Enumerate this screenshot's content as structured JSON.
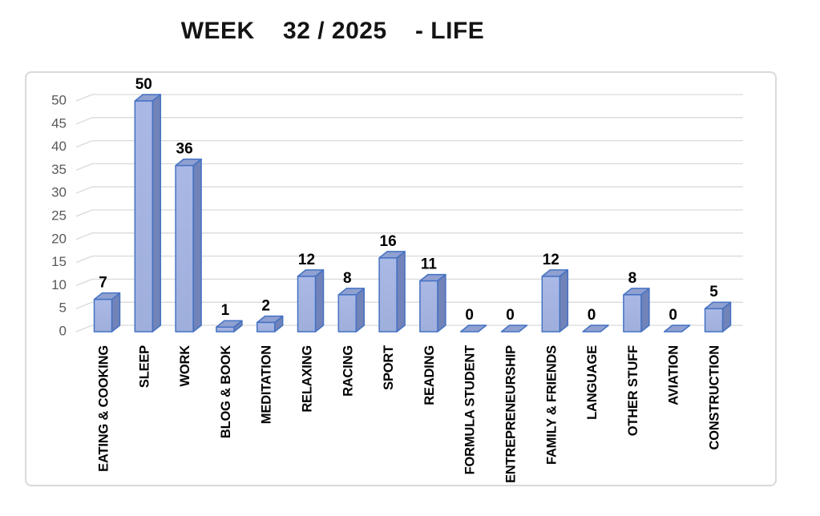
{
  "chart_data": {
    "type": "bar",
    "style": "3d-column",
    "title": "WEEK    32 / 2025    - LIFE",
    "categories": [
      "EATING & COOKING",
      "SLEEP",
      "WORK",
      "BLOG & BOOK",
      "MEDITATION",
      "RELAXING",
      "RACING",
      "SPORT",
      "READING",
      "FORMULA STUDENT",
      "ENTREPRENEURSHIP",
      "FAMILY & FRIENDS",
      "LANGUAGE",
      "OTHER STUFF",
      "AVIATION",
      "CONSTRUCTION"
    ],
    "values": [
      7,
      50,
      36,
      1,
      2,
      12,
      8,
      16,
      11,
      0,
      0,
      12,
      0,
      8,
      0,
      5
    ],
    "data_labels_shown": true,
    "xlabel": "",
    "ylabel": "",
    "ylim": [
      0,
      50
    ],
    "ytick_step": 5,
    "grid": true,
    "legend": "none",
    "colors": {
      "bar_front": "#9fafdc",
      "bar_front_light": "#aab8e5",
      "bar_side": "#7183b8",
      "bar_top": "#8fa0d1",
      "bar_stroke": "#4472c4",
      "gridline": "#d9d9d9",
      "plot_border": "#d9d9d9",
      "ytick_text": "#595959",
      "xtick_text": "#000000",
      "data_label_text": "#000000",
      "title_text": "#141414",
      "background": "#ffffff"
    }
  }
}
